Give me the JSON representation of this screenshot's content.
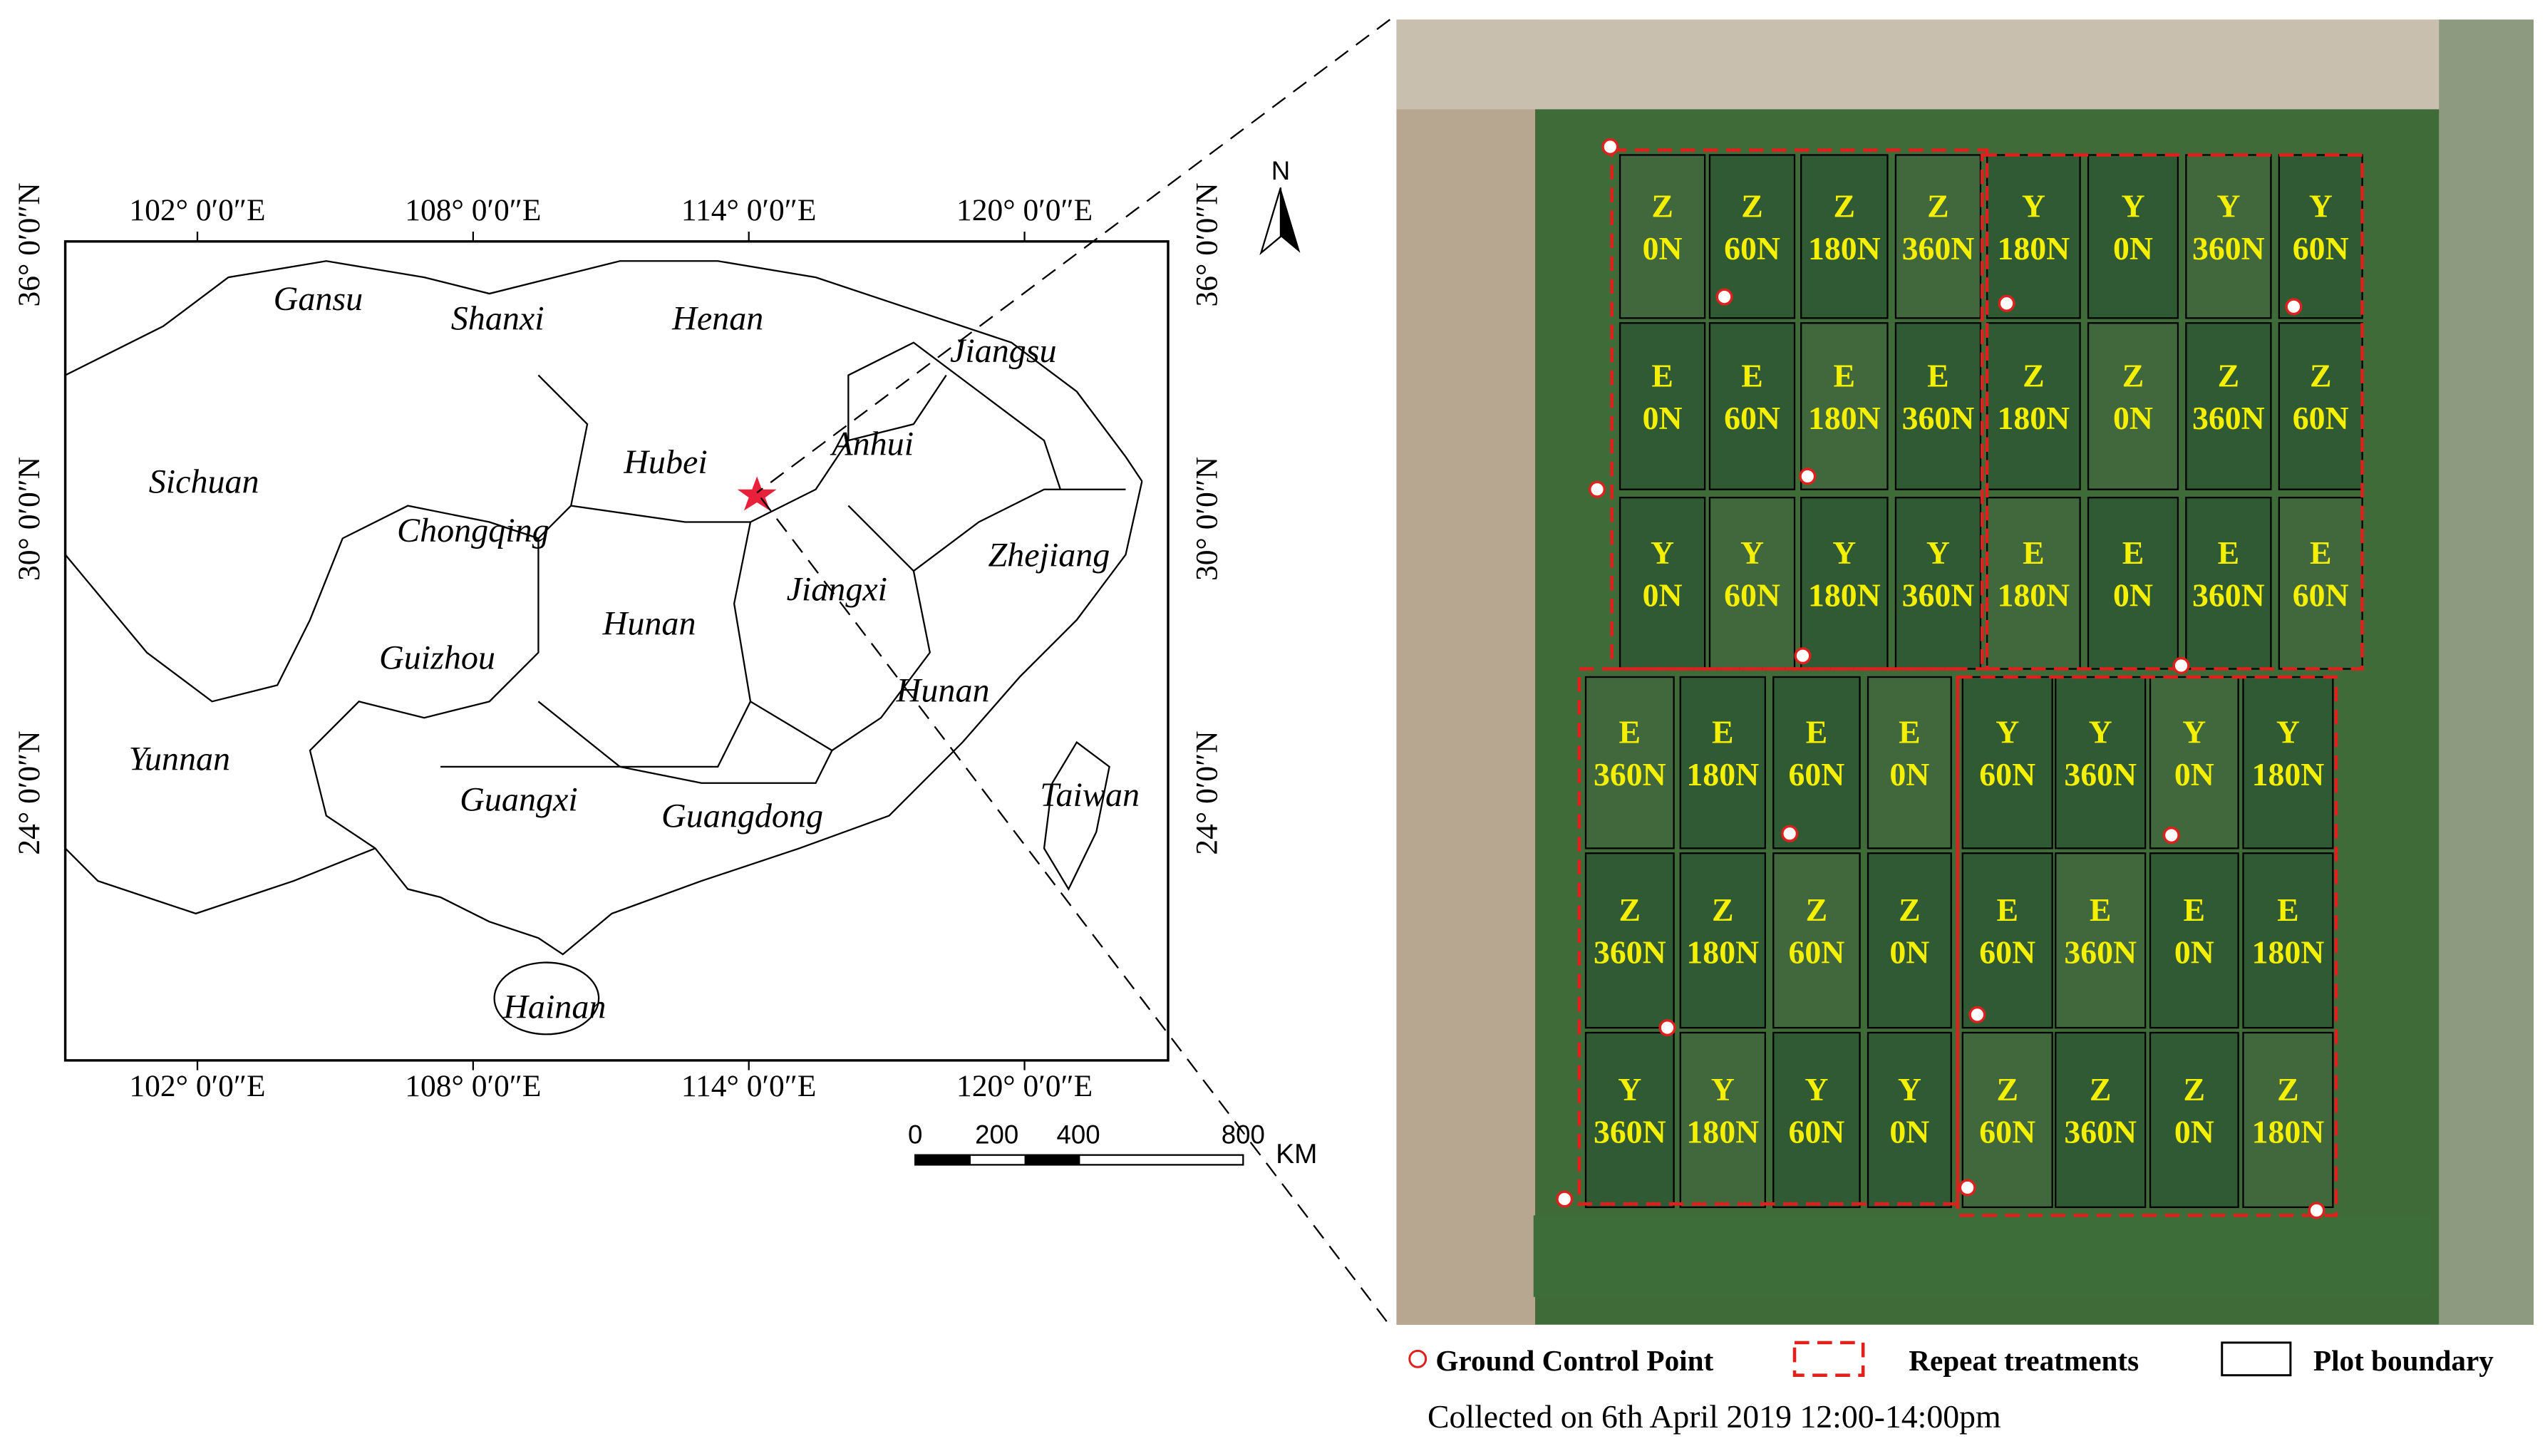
{
  "map": {
    "lon_labels": [
      "102°  0′0″E",
      "108°  0′0″E",
      "114°  0′0″E",
      "120°  0′0″E"
    ],
    "lat_labels": [
      "36° 0′0″N",
      "30° 0′0″N",
      "24° 0′0″N"
    ],
    "provinces": [
      "Gansu",
      "Shanxi",
      "Henan",
      "Jiangsu",
      "Sichuan",
      "Hubei",
      "Anhui",
      "Chongqing",
      "Zhejiang",
      "Jiangxi",
      "Hunan",
      "Guizhou",
      "Hunan",
      "Yunnan",
      "Taiwan",
      "Guangxi",
      "Guangdong",
      "Hainan"
    ],
    "north": "N",
    "scale_labels": [
      "0",
      "200",
      "400",
      "800"
    ],
    "scale_unit": "KM"
  },
  "plots": {
    "rows": [
      [
        [
          "Z",
          "0N"
        ],
        [
          "Z",
          "60N"
        ],
        [
          "Z",
          "180N"
        ],
        [
          "Z",
          "360N"
        ],
        [
          "Y",
          "180N"
        ],
        [
          "Y",
          "0N"
        ],
        [
          "Y",
          "360N"
        ],
        [
          "Y",
          "60N"
        ]
      ],
      [
        [
          "E",
          "0N"
        ],
        [
          "E",
          "60N"
        ],
        [
          "E",
          "180N"
        ],
        [
          "E",
          "360N"
        ],
        [
          "Z",
          "180N"
        ],
        [
          "Z",
          "0N"
        ],
        [
          "Z",
          "360N"
        ],
        [
          "Z",
          "60N"
        ]
      ],
      [
        [
          "Y",
          "0N"
        ],
        [
          "Y",
          "60N"
        ],
        [
          "Y",
          "180N"
        ],
        [
          "Y",
          "360N"
        ],
        [
          "E",
          "180N"
        ],
        [
          "E",
          "0N"
        ],
        [
          "E",
          "360N"
        ],
        [
          "E",
          "60N"
        ]
      ],
      [
        [
          "E",
          "360N"
        ],
        [
          "E",
          "180N"
        ],
        [
          "E",
          "60N"
        ],
        [
          "E",
          "0N"
        ],
        [
          "Y",
          "60N"
        ],
        [
          "Y",
          "360N"
        ],
        [
          "Y",
          "0N"
        ],
        [
          "Y",
          "180N"
        ]
      ],
      [
        [
          "Z",
          "360N"
        ],
        [
          "Z",
          "180N"
        ],
        [
          "Z",
          "60N"
        ],
        [
          "Z",
          "0N"
        ],
        [
          "E",
          "60N"
        ],
        [
          "E",
          "360N"
        ],
        [
          "E",
          "0N"
        ],
        [
          "E",
          "180N"
        ]
      ],
      [
        [
          "Y",
          "360N"
        ],
        [
          "Y",
          "180N"
        ],
        [
          "Y",
          "60N"
        ],
        [
          "Y",
          "0N"
        ],
        [
          "Z",
          "60N"
        ],
        [
          "Z",
          "360N"
        ],
        [
          "Z",
          "0N"
        ],
        [
          "Z",
          "180N"
        ]
      ]
    ]
  },
  "legend": {
    "gcp": "Ground Control Point",
    "repeat": "Repeat treatments",
    "plot": "Plot boundary"
  },
  "caption": "Collected on 6th April 2019 12:00-14:00pm"
}
